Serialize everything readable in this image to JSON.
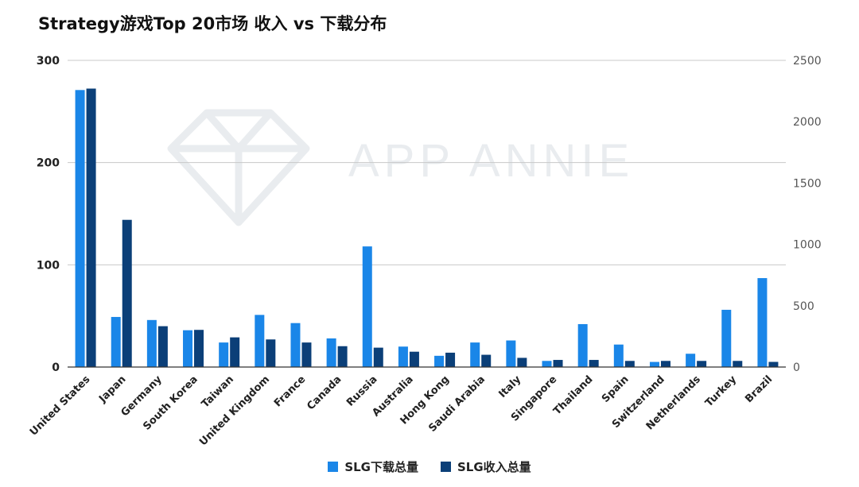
{
  "title": "Strategy游戏Top 20市场 收入 vs 下载分布",
  "watermark": "APP ANNIE",
  "colors": {
    "downloads": "#1a86e8",
    "revenue": "#0b3f78",
    "watermark": "#e9ecef"
  },
  "chart_data": {
    "type": "bar",
    "title": "Strategy游戏Top 20市场 收入 vs 下载分布",
    "categories": [
      "United States",
      "Japan",
      "Germany",
      "South Korea",
      "Taiwan",
      "United Kingdom",
      "France",
      "Canada",
      "Russia",
      "Australia",
      "Hong Kong",
      "Saudi Arabia",
      "Italy",
      "Singapore",
      "Thailand",
      "Spain",
      "Switzerland",
      "Netherlands",
      "Turkey",
      "Brazil"
    ],
    "series": [
      {
        "name": "SLG下载总量",
        "axis": "left",
        "values": [
          271,
          49,
          46,
          36,
          24,
          51,
          43,
          28,
          118,
          20,
          11,
          24,
          26,
          6,
          42,
          22,
          5,
          13,
          56,
          87
        ]
      },
      {
        "name": "SLG收入总量",
        "axis": "right",
        "values": [
          2270,
          1200,
          333,
          303,
          242,
          225,
          200,
          170,
          158,
          125,
          117,
          100,
          75,
          58,
          58,
          50,
          50,
          50,
          50,
          42
        ]
      }
    ],
    "left_axis": {
      "ylim": [
        0,
        300
      ],
      "ticks": [
        0,
        100,
        200,
        300
      ]
    },
    "right_axis": {
      "ylim": [
        0,
        2500
      ],
      "ticks": [
        0,
        500,
        1000,
        1500,
        2000,
        2500
      ]
    },
    "grid": true,
    "legend_position": "bottom"
  },
  "legend": [
    {
      "label": "SLG下载总量",
      "color": "#1a86e8"
    },
    {
      "label": "SLG收入总量",
      "color": "#0b3f78"
    }
  ]
}
